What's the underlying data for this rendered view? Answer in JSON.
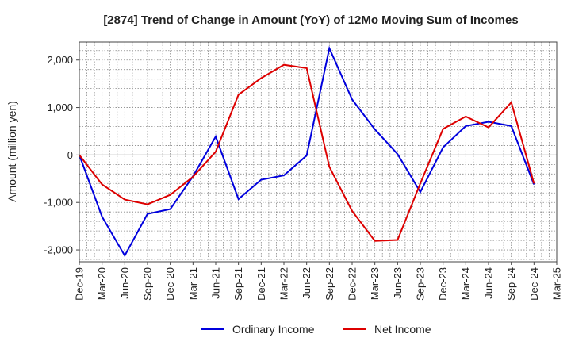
{
  "chart_data": {
    "type": "line",
    "title": "[2874]  Trend of Change in Amount (YoY) of 12Mo Moving Sum of Incomes",
    "xlabel": "",
    "ylabel": "Amount (million yen)",
    "ylim": [
      -2250,
      2380
    ],
    "y_ticks": [
      2000,
      1000,
      0,
      -1000,
      -2000
    ],
    "y_tick_labels": [
      "2,000",
      "1,000",
      "0",
      "-1,000",
      "-2,000"
    ],
    "grid": true,
    "legend_position": "bottom-center",
    "categories": [
      "Dec-19",
      "Mar-20",
      "Jun-20",
      "Sep-20",
      "Dec-20",
      "Mar-21",
      "Jun-21",
      "Sep-21",
      "Dec-21",
      "Mar-22",
      "Jun-22",
      "Sep-22",
      "Dec-22",
      "Mar-23",
      "Jun-23",
      "Sep-23",
      "Dec-23",
      "Mar-24",
      "Jun-24",
      "Sep-24",
      "Dec-24",
      "Mar-25"
    ],
    "series": [
      {
        "name": "Ordinary Income",
        "color": "#0000dd",
        "values": [
          0,
          -1300,
          -2120,
          -1240,
          -1140,
          -450,
          390,
          -930,
          -520,
          -430,
          -10,
          2250,
          1170,
          540,
          20,
          -780,
          160,
          610,
          700,
          610,
          -620,
          null
        ]
      },
      {
        "name": "Net Income",
        "color": "#dd0000",
        "values": [
          0,
          -620,
          -940,
          -1040,
          -840,
          -460,
          70,
          1270,
          1620,
          1900,
          1830,
          -250,
          -1180,
          -1810,
          -1790,
          -600,
          550,
          810,
          580,
          1110,
          -600,
          null
        ]
      }
    ]
  }
}
